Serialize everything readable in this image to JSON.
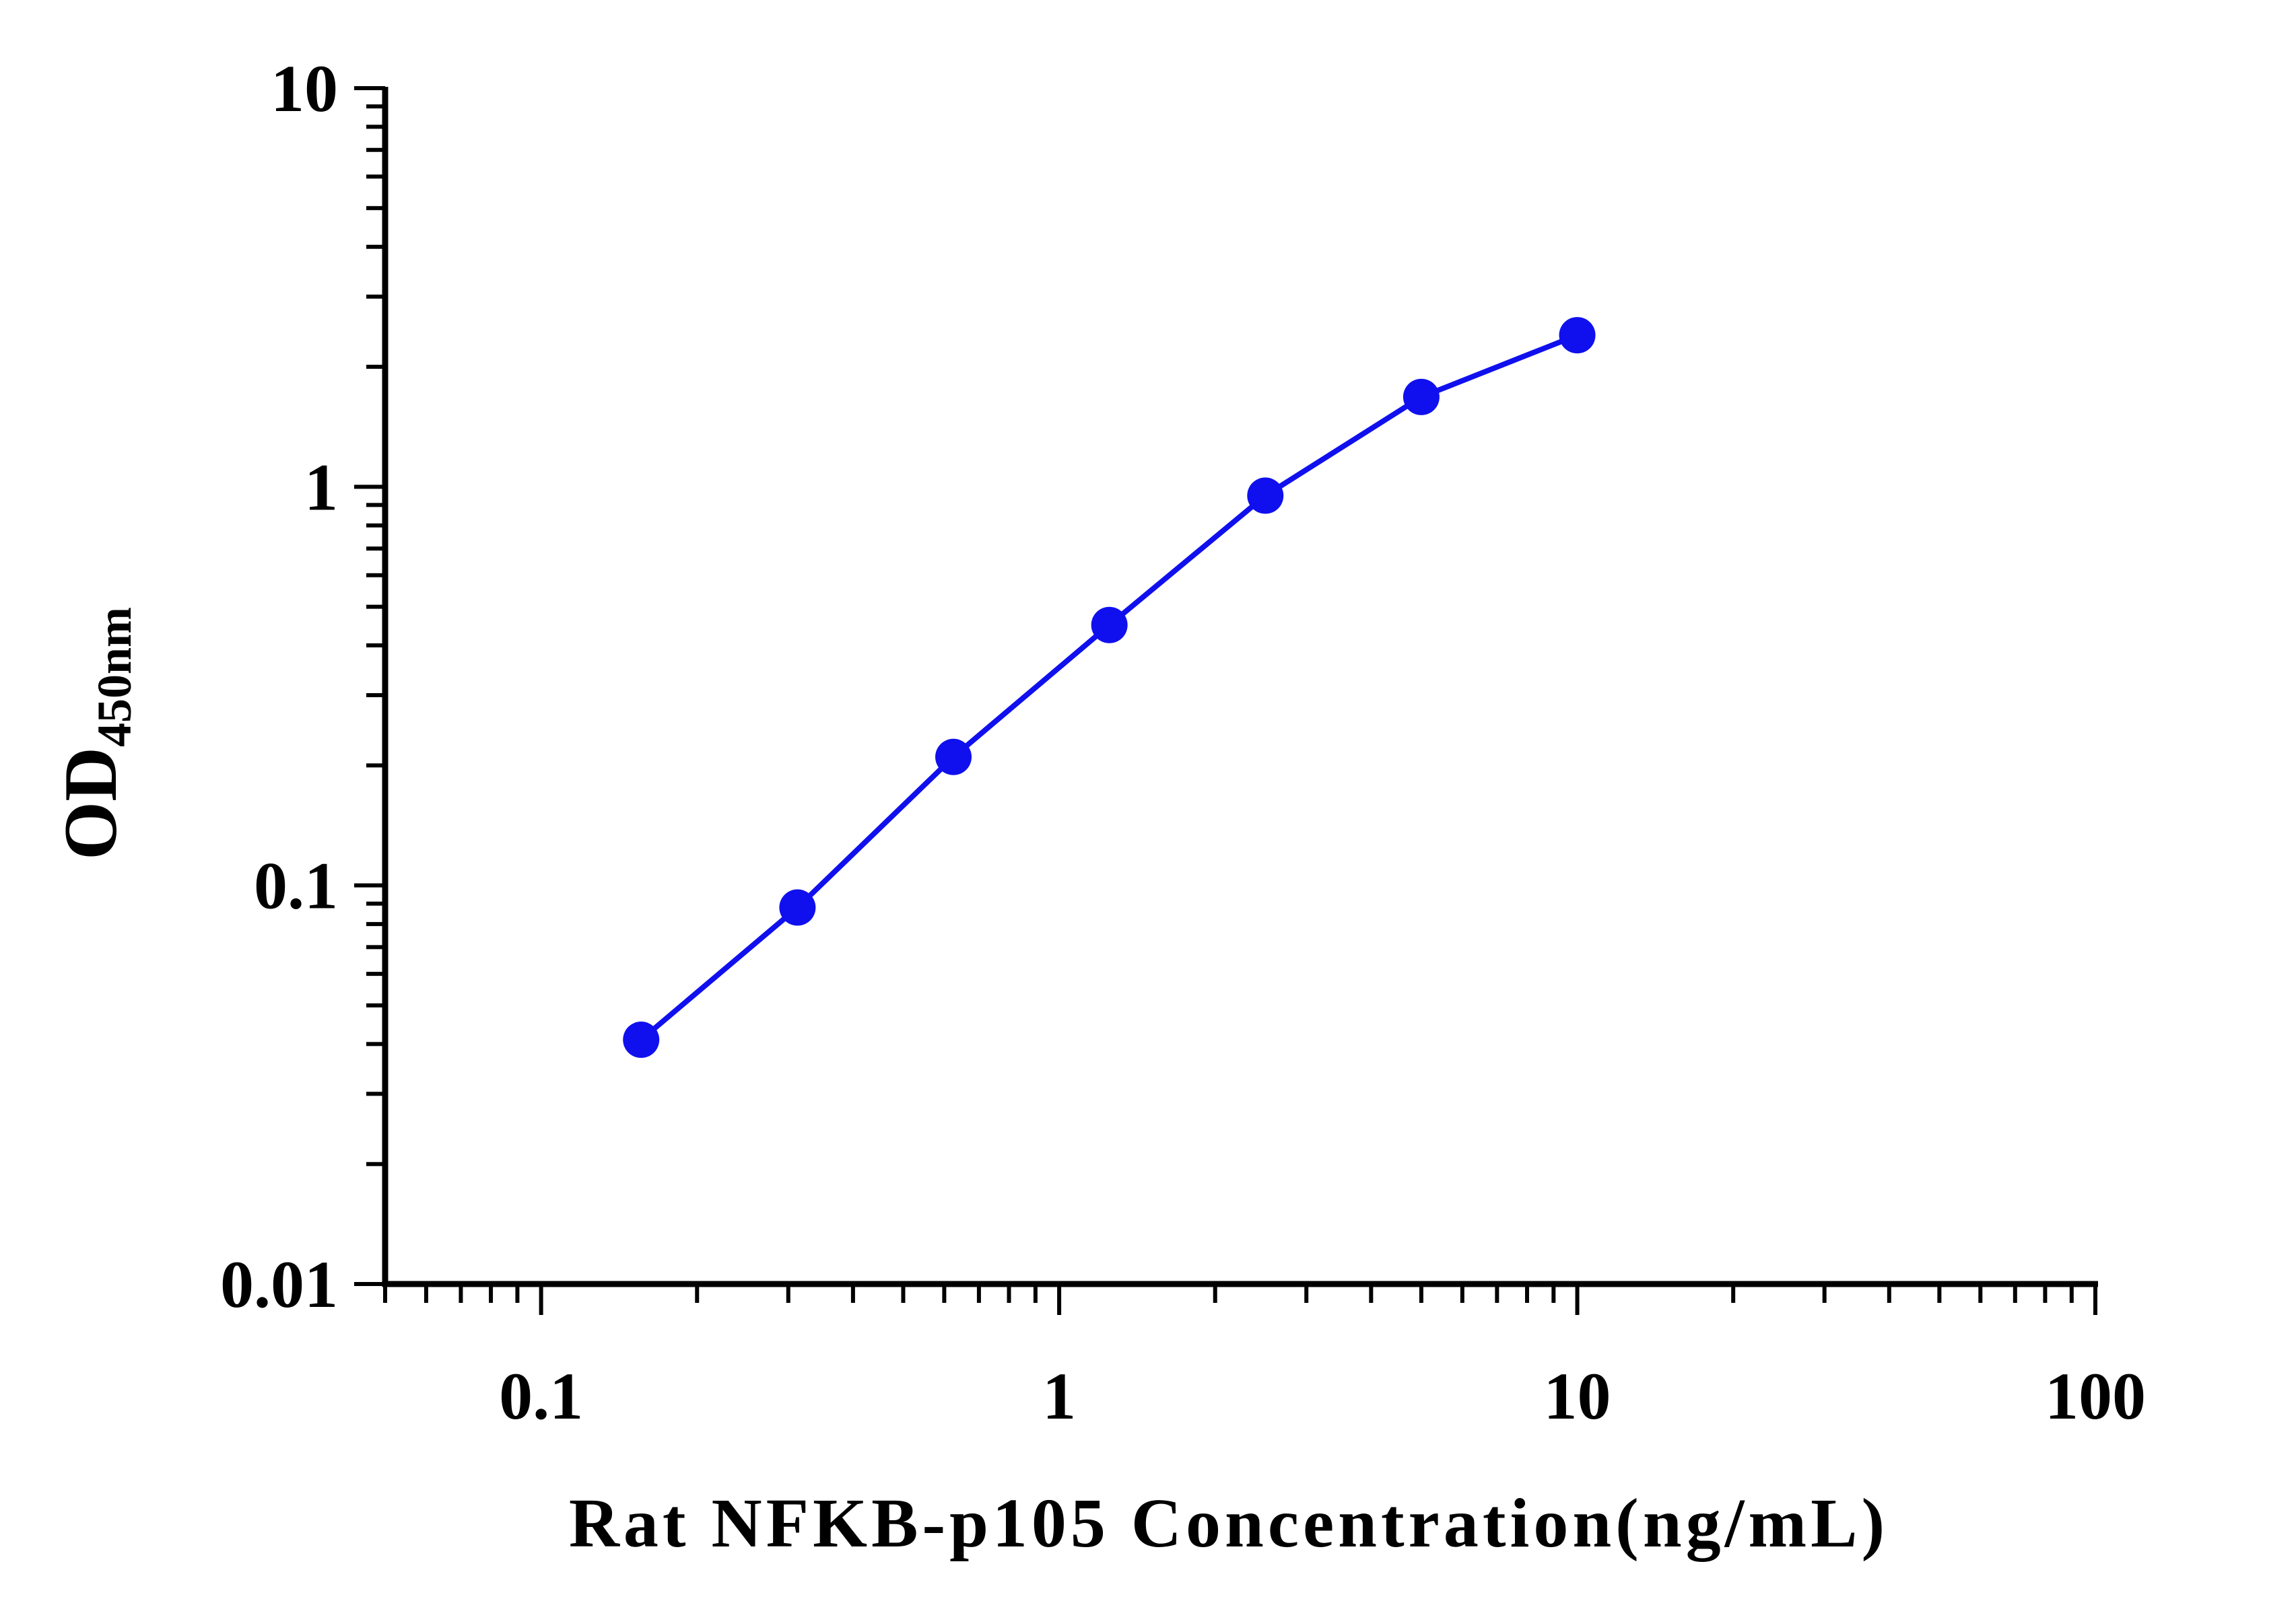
{
  "chart_data": {
    "type": "line",
    "xlabel": "Rat NFKB-p105 Concentration(ng/mL)",
    "ylabel": {
      "main": "OD",
      "subscript": "450nm"
    },
    "x_scale": "log",
    "y_scale": "log",
    "xlim": [
      0.05,
      100
    ],
    "ylim": [
      0.01,
      10
    ],
    "x_ticks": [
      "0.1",
      "1",
      "10",
      "100"
    ],
    "y_ticks": [
      "0.01",
      "0.1",
      "1",
      "10"
    ],
    "grid": false,
    "series": [
      {
        "color": "#1010ee",
        "x": [
          0.156,
          0.3125,
          0.625,
          1.25,
          2.5,
          5,
          10
        ],
        "y": [
          0.041,
          0.088,
          0.21,
          0.45,
          0.95,
          1.68,
          2.4
        ]
      }
    ]
  }
}
